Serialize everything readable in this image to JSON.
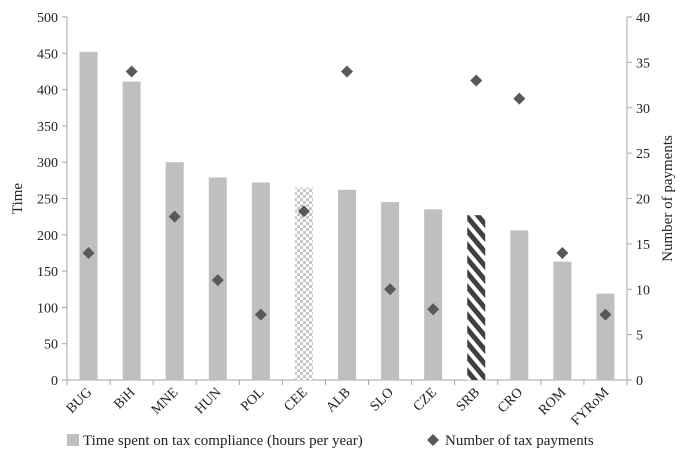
{
  "chart_data": {
    "type": "bar",
    "categories": [
      "BUG",
      "BiH",
      "MNE",
      "HUN",
      "POL",
      "CEE",
      "ALB",
      "SLO",
      "CZE",
      "SRB",
      "CRO",
      "ROM",
      "FYRoM"
    ],
    "series": [
      {
        "name": "Time spent on tax compliance (hours per year)",
        "type": "bar",
        "axis": "left",
        "values": [
          452,
          411,
          300,
          279,
          272,
          265,
          262,
          245,
          235,
          227,
          206,
          163,
          119
        ],
        "patterns": [
          "solid",
          "solid",
          "solid",
          "solid",
          "solid",
          "checker",
          "solid",
          "solid",
          "solid",
          "diagonal",
          "solid",
          "solid",
          "solid"
        ]
      },
      {
        "name": "Number of tax payments",
        "type": "scatter",
        "axis": "right",
        "marker": "diamond",
        "values": [
          14,
          34,
          18,
          11,
          7.2,
          18.6,
          34,
          10,
          7.8,
          33,
          31,
          14,
          7.2
        ]
      }
    ],
    "ylabel": "Time",
    "y2label": "Number of payments",
    "ylim": [
      0,
      500
    ],
    "y2lim": [
      0,
      40
    ],
    "yticks": [
      "0",
      "50",
      "100",
      "150",
      "200",
      "250",
      "300",
      "350",
      "400",
      "450",
      "500"
    ],
    "y2ticks": [
      "0",
      "5",
      "10",
      "15",
      "20",
      "25",
      "30",
      "35",
      "40"
    ],
    "grid": false,
    "legend": "bottom",
    "colors": {
      "bar": "#bfbfbf",
      "marker": "#595959",
      "hatch": "#404040",
      "axis": "#a6a6a6"
    }
  }
}
